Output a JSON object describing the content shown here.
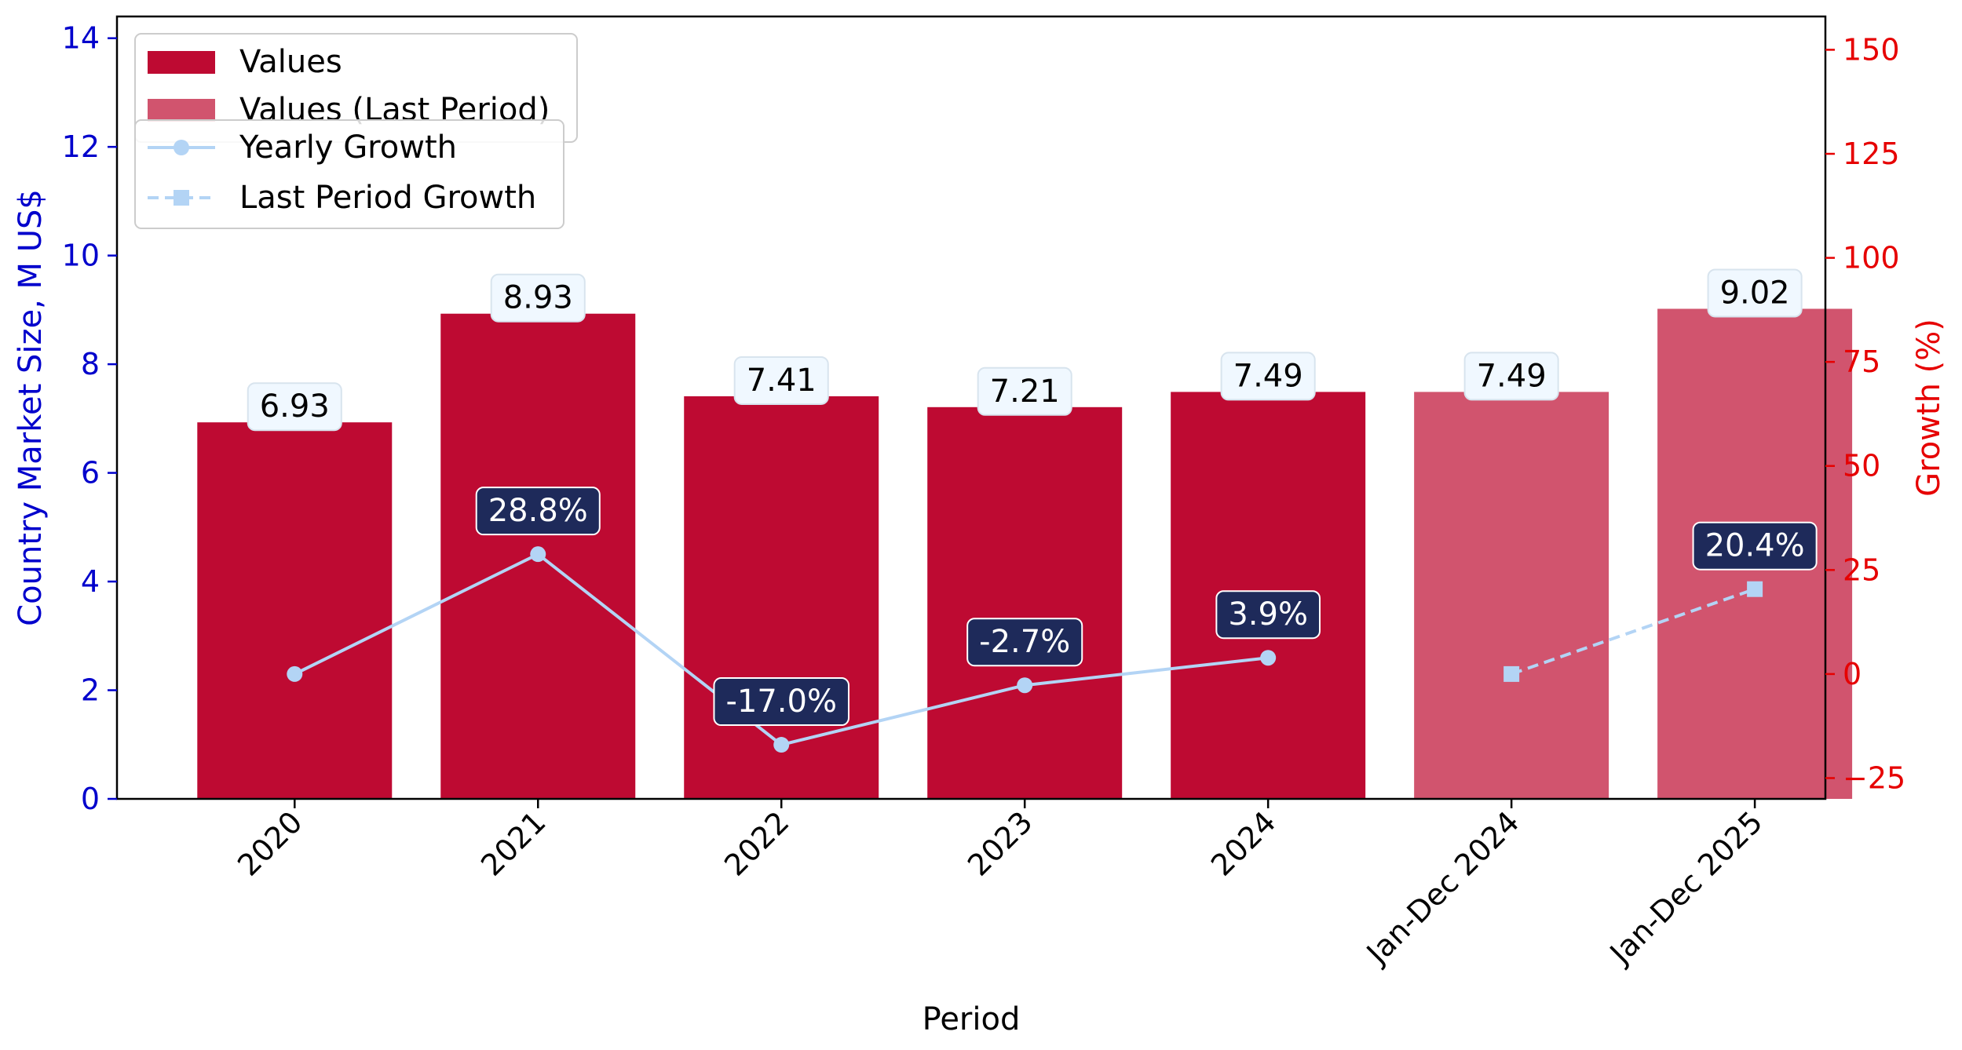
{
  "chart_data": {
    "type": "bar",
    "categories": [
      "2020",
      "2021",
      "2022",
      "2023",
      "2024",
      "Jan-Dec 2024",
      "Jan-Dec 2025"
    ],
    "xlabel": "Period",
    "ylabel": "Country Market Size, M US$",
    "y2label": "Growth (%)",
    "ylim": [
      0,
      14.4
    ],
    "y2lim": [
      -30,
      158
    ],
    "yticks": [
      0,
      2,
      4,
      6,
      8,
      10,
      12,
      14
    ],
    "y2ticks": [
      -25,
      0,
      25,
      50,
      75,
      100,
      125,
      150
    ],
    "grid": false,
    "legend_position": "top-left",
    "series": [
      {
        "name": "Values",
        "type": "bar",
        "axis": "left",
        "color": "#be0a32",
        "values": [
          6.93,
          8.93,
          7.41,
          7.21,
          7.49,
          null,
          null
        ],
        "labels": [
          "6.93",
          "8.93",
          "7.41",
          "7.21",
          "7.49",
          null,
          null
        ]
      },
      {
        "name": "Values (Last Period)",
        "type": "bar",
        "axis": "left",
        "color": "#d1546e",
        "values": [
          null,
          null,
          null,
          null,
          null,
          7.49,
          9.02
        ],
        "labels": [
          null,
          null,
          null,
          null,
          null,
          "7.49",
          "9.02"
        ]
      },
      {
        "name": "Yearly Growth",
        "type": "line",
        "axis": "right",
        "color": "#b3d4f5",
        "marker": "circle",
        "line_style": "solid",
        "values": [
          0,
          28.8,
          -17.0,
          -2.7,
          3.9,
          null,
          null
        ],
        "labels": [
          null,
          "28.8%",
          "-17.0%",
          "-2.7%",
          "3.9%",
          null,
          null
        ]
      },
      {
        "name": "Last Period Growth",
        "type": "line",
        "axis": "right",
        "color": "#b3d4f5",
        "marker": "square",
        "line_style": "dashed",
        "values": [
          null,
          null,
          null,
          null,
          null,
          0,
          20.4
        ],
        "labels": [
          null,
          null,
          null,
          null,
          null,
          null,
          "20.4%"
        ]
      }
    ],
    "colors": {
      "left_axis": "#0000cc",
      "right_axis": "#e60000",
      "value_label_bg": "#f0f8ff",
      "growth_label_bg": "#1e2a5a"
    }
  }
}
